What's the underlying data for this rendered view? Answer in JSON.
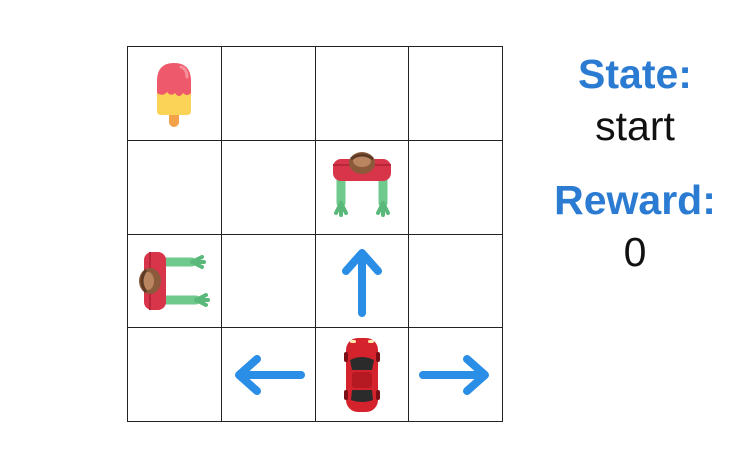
{
  "grid": {
    "rows": 4,
    "cols": 4,
    "cells": [
      [
        "icecream-icon",
        "",
        "",
        ""
      ],
      [
        "",
        "",
        "zombie-down-icon",
        ""
      ],
      [
        "zombie-right-icon",
        "",
        "arrow-up-icon",
        ""
      ],
      [
        "",
        "arrow-left-icon",
        "car-icon",
        "arrow-right-icon"
      ]
    ]
  },
  "colors": {
    "label": "#2a7bd1",
    "arrow": "#2a8ee6",
    "car": "#d4232c"
  },
  "status": {
    "state_label": "State:",
    "state_value": "start",
    "reward_label": "Reward:",
    "reward_value": "0"
  }
}
